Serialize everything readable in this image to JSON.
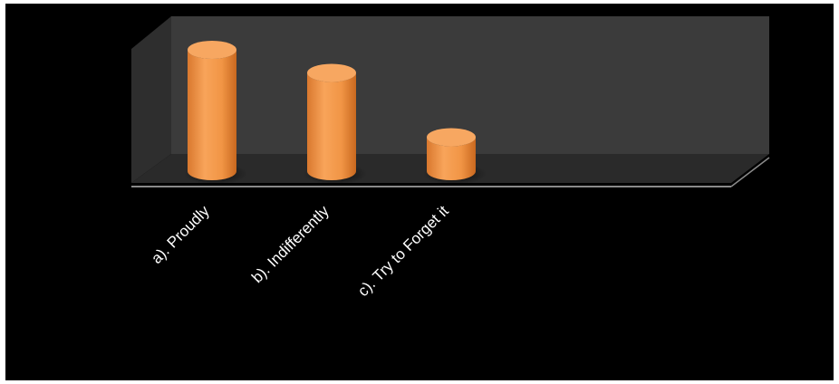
{
  "chart_data": {
    "type": "bar",
    "style": "3d-cylinder",
    "categories": [
      "a). Proudly",
      "b). Indifferently",
      "c). Try to Forget it"
    ],
    "values": [
      100,
      81,
      28
    ],
    "ylim": [
      0,
      100
    ],
    "title": "",
    "xlabel": "",
    "ylabel": "",
    "grid": false,
    "legend": "none",
    "colors": {
      "background": "#000000",
      "wall": "#3a3a3a",
      "floor": "#2c2c2c",
      "bar_light": "#f8a45a",
      "bar_dark": "#d9782e",
      "bar_top": "#f7a761"
    }
  }
}
